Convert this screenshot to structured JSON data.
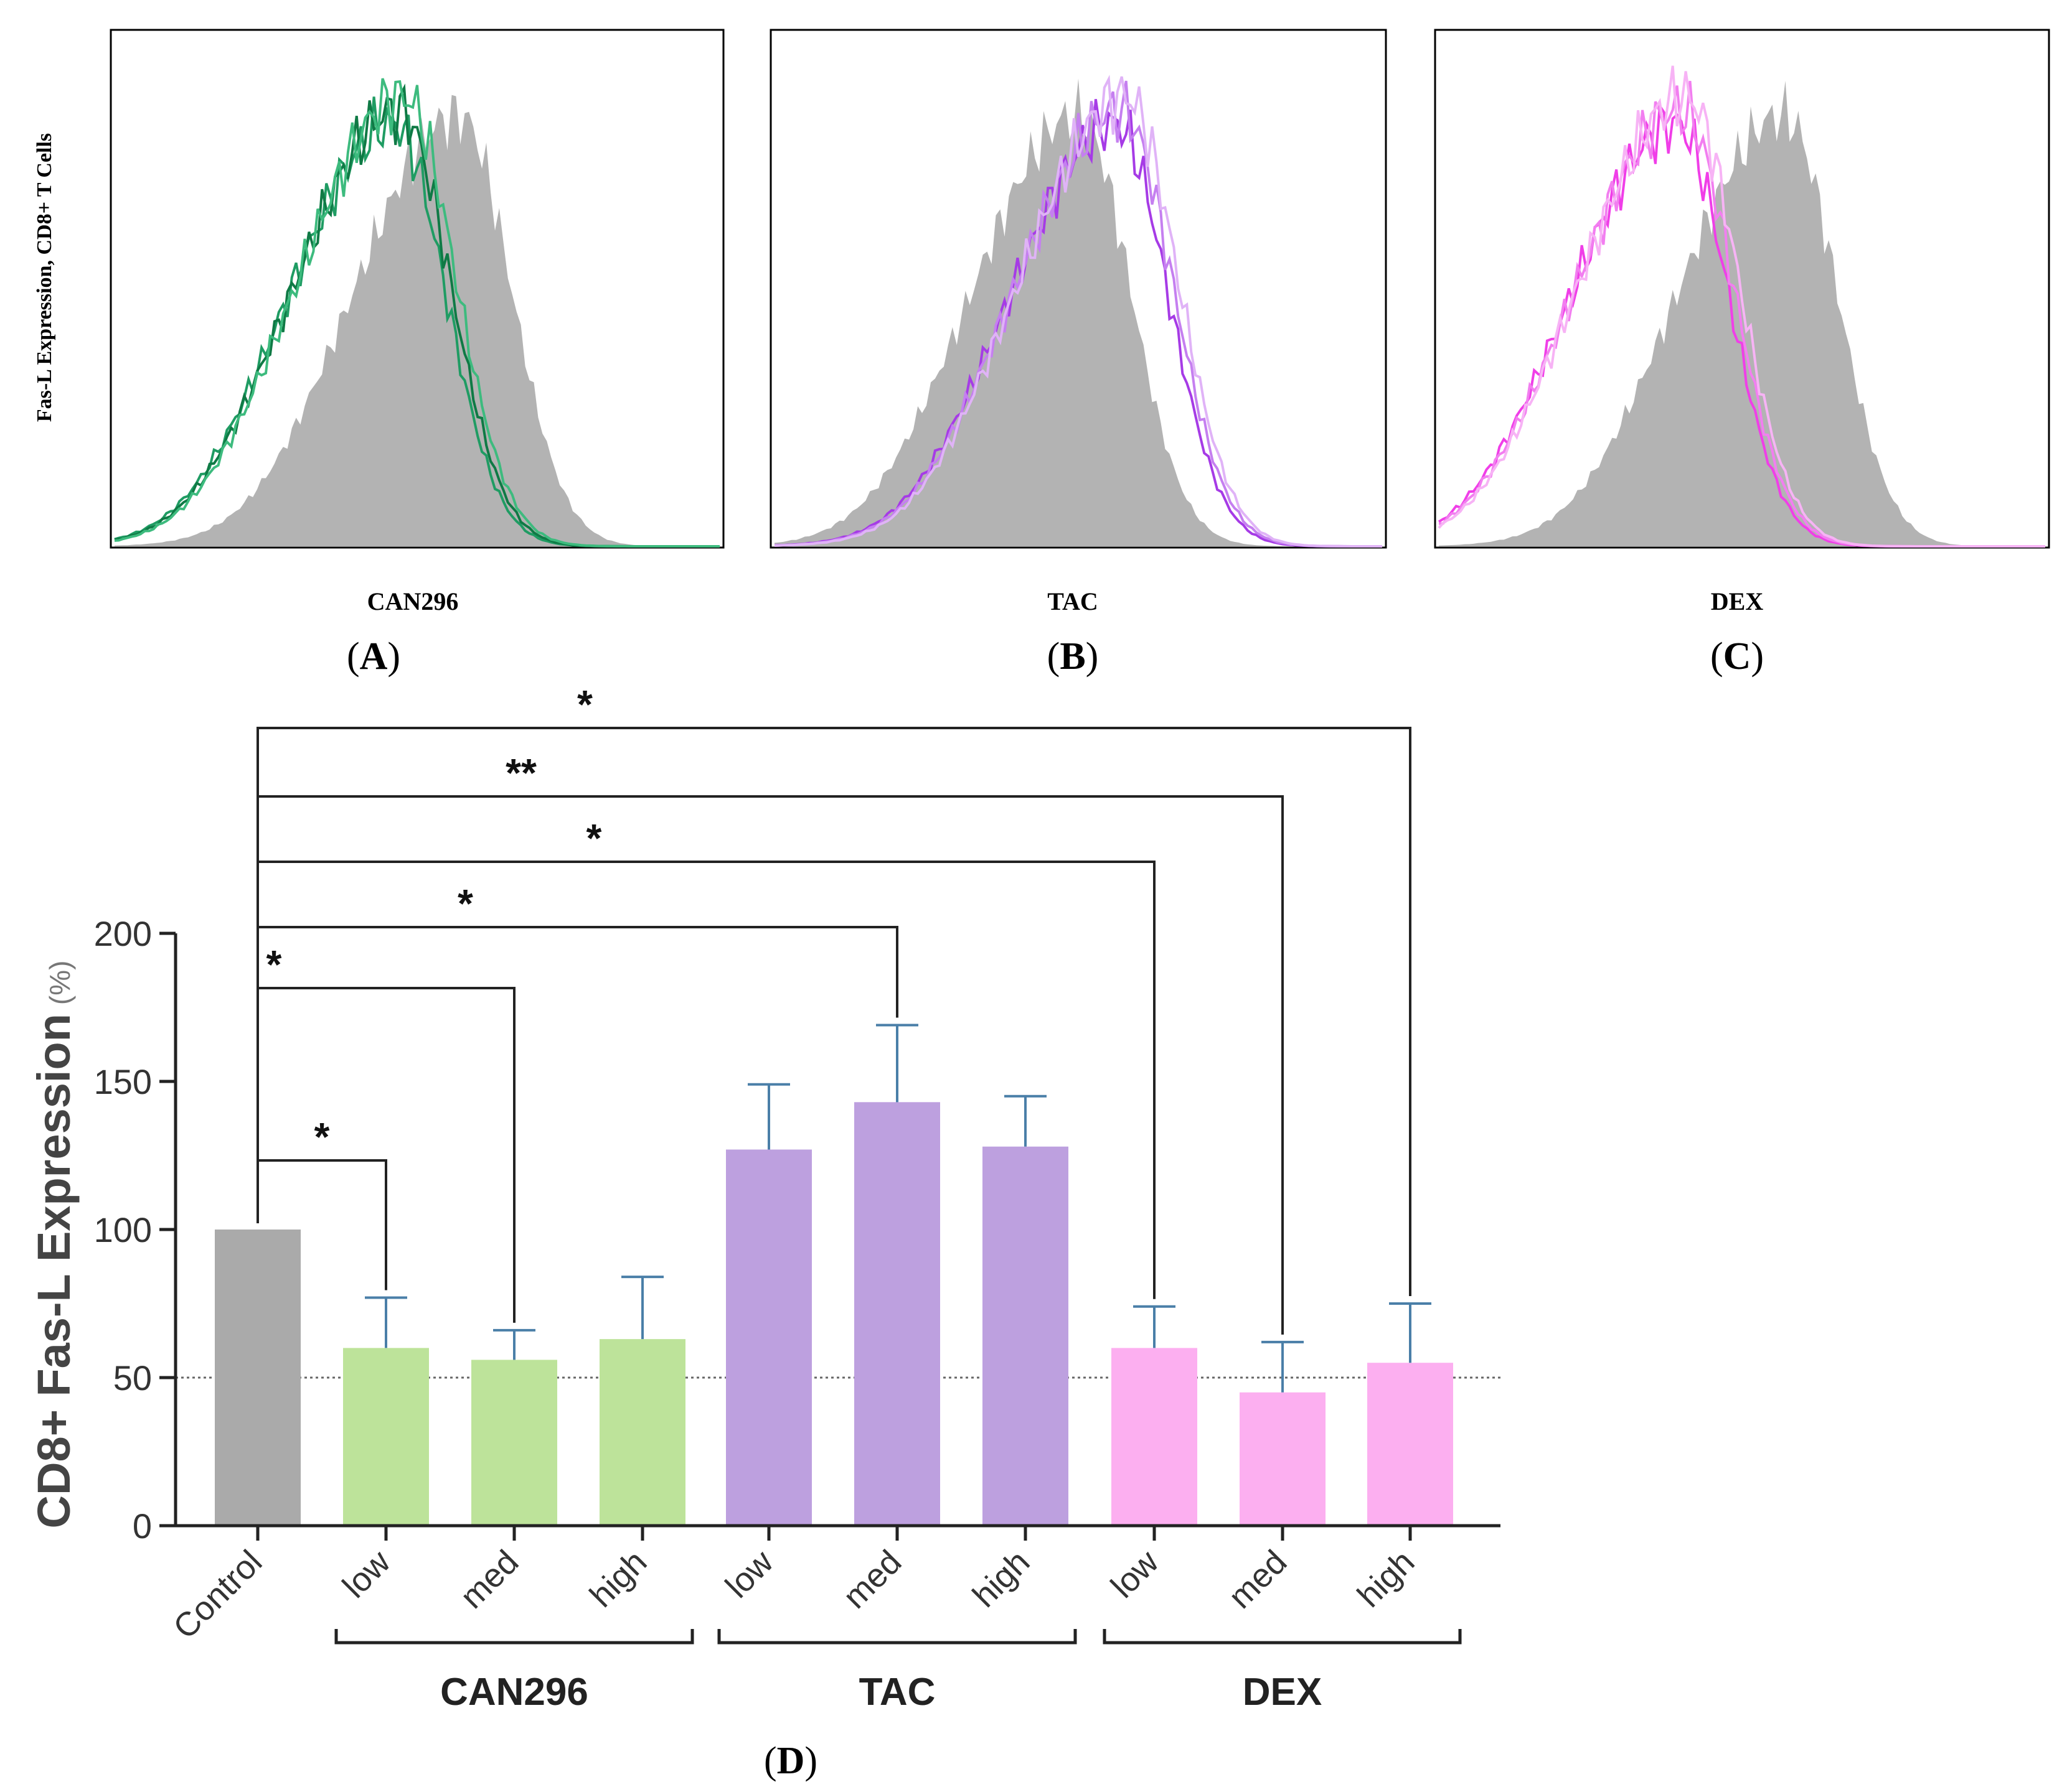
{
  "panels": [
    {
      "id": "A",
      "caption": "A",
      "xlabel": "CAN296",
      "ylabel": "Fas-L Expression, CD8+ T Cells",
      "control_fill": "#b3b3b3",
      "overlay_colors": [
        "#1f9c63",
        "#0f7a45",
        "#3dbb7e"
      ],
      "control_peak_position": 0.57,
      "overlay_peak_position": 0.47
    },
    {
      "id": "B",
      "caption": "B",
      "xlabel": "TAC",
      "control_fill": "#b3b3b3",
      "overlay_colors": [
        "#a63be6",
        "#c57ff0",
        "#e0b3f7"
      ],
      "control_peak_position": 0.5,
      "overlay_peak_position": 0.57
    },
    {
      "id": "C",
      "caption": "C",
      "xlabel": "DEX",
      "control_fill": "#b3b3b3",
      "overlay_colors": [
        "#f03ee8",
        "#f27ef0",
        "#f7b3f5"
      ],
      "control_peak_position": 0.57,
      "overlay_peak_position": 0.4
    }
  ],
  "chart_data": {
    "type": "bar",
    "caption": "D",
    "ylabel_main": "CD8+ Fas-L Expression",
    "ylabel_unit": "(%)",
    "ylim": [
      0,
      200
    ],
    "yticks": [
      0,
      50,
      100,
      150,
      200
    ],
    "reference_line": 50,
    "categories": [
      "Control",
      "low",
      "med",
      "high",
      "low",
      "med",
      "high",
      "low",
      "med",
      "high"
    ],
    "values": [
      100,
      60,
      56,
      63,
      127,
      143,
      128,
      60,
      45,
      55
    ],
    "errors_upper": [
      0,
      17,
      10,
      21,
      22,
      26,
      17,
      14,
      17,
      20
    ],
    "bar_colors": [
      "#aaaaaa",
      "#bde39a",
      "#bde39a",
      "#bde39a",
      "#bda0df",
      "#bda0df",
      "#bda0df",
      "#fcaff0",
      "#fcaff0",
      "#fcaff0"
    ],
    "error_color": "#4a7fa8",
    "groups": [
      {
        "label": "CAN296",
        "from": 1,
        "to": 3
      },
      {
        "label": "TAC",
        "from": 4,
        "to": 6
      },
      {
        "label": "DEX",
        "from": 7,
        "to": 9
      }
    ],
    "significance": [
      {
        "from": 0,
        "to": 1,
        "label": "*"
      },
      {
        "from": 0,
        "to": 2,
        "label": "*"
      },
      {
        "from": 0,
        "to": 5,
        "label": "*"
      },
      {
        "from": 0,
        "to": 7,
        "label": "*"
      },
      {
        "from": 0,
        "to": 8,
        "label": "**"
      },
      {
        "from": 0,
        "to": 9,
        "label": "*"
      }
    ]
  }
}
